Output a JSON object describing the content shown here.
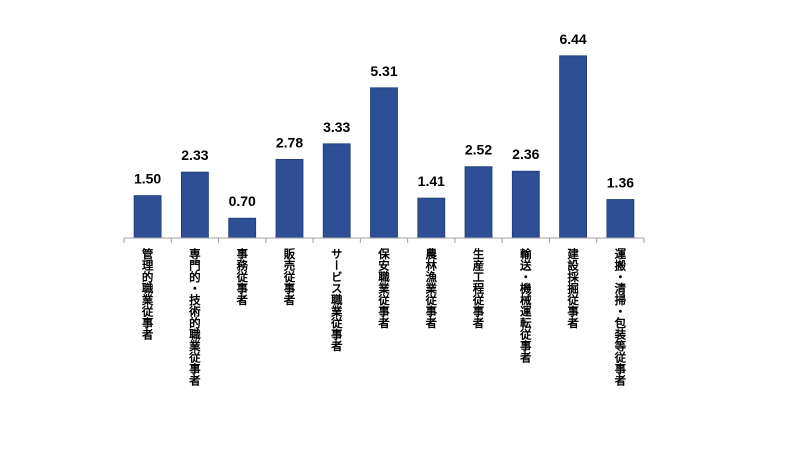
{
  "chart_data": {
    "type": "bar",
    "categories": [
      "管理的職業従事者",
      "専門的・技術的職業従事者",
      "事務従事者",
      "販売従事者",
      "サービス職業従事者",
      "保安職業従事者",
      "農林漁業従事者",
      "生産工程従事者",
      "輸送・機械運転従事者",
      "建設採掘従事者",
      "運搬・清掃・包装等従事者"
    ],
    "values": [
      1.5,
      2.33,
      0.7,
      2.78,
      3.33,
      5.31,
      1.41,
      2.52,
      2.36,
      6.44,
      1.36
    ],
    "value_labels": [
      "1.50",
      "2.33",
      "0.70",
      "2.78",
      "3.33",
      "5.31",
      "1.41",
      "2.52",
      "2.36",
      "6.44",
      "1.36"
    ],
    "ylim": [
      0,
      7
    ],
    "bar_color": "#2e4f96",
    "bar_edge_color": "#1f3a75",
    "axis_color": "#a0a0a0",
    "grid": false,
    "legend": "none",
    "category_label_orientation": "vertical"
  }
}
